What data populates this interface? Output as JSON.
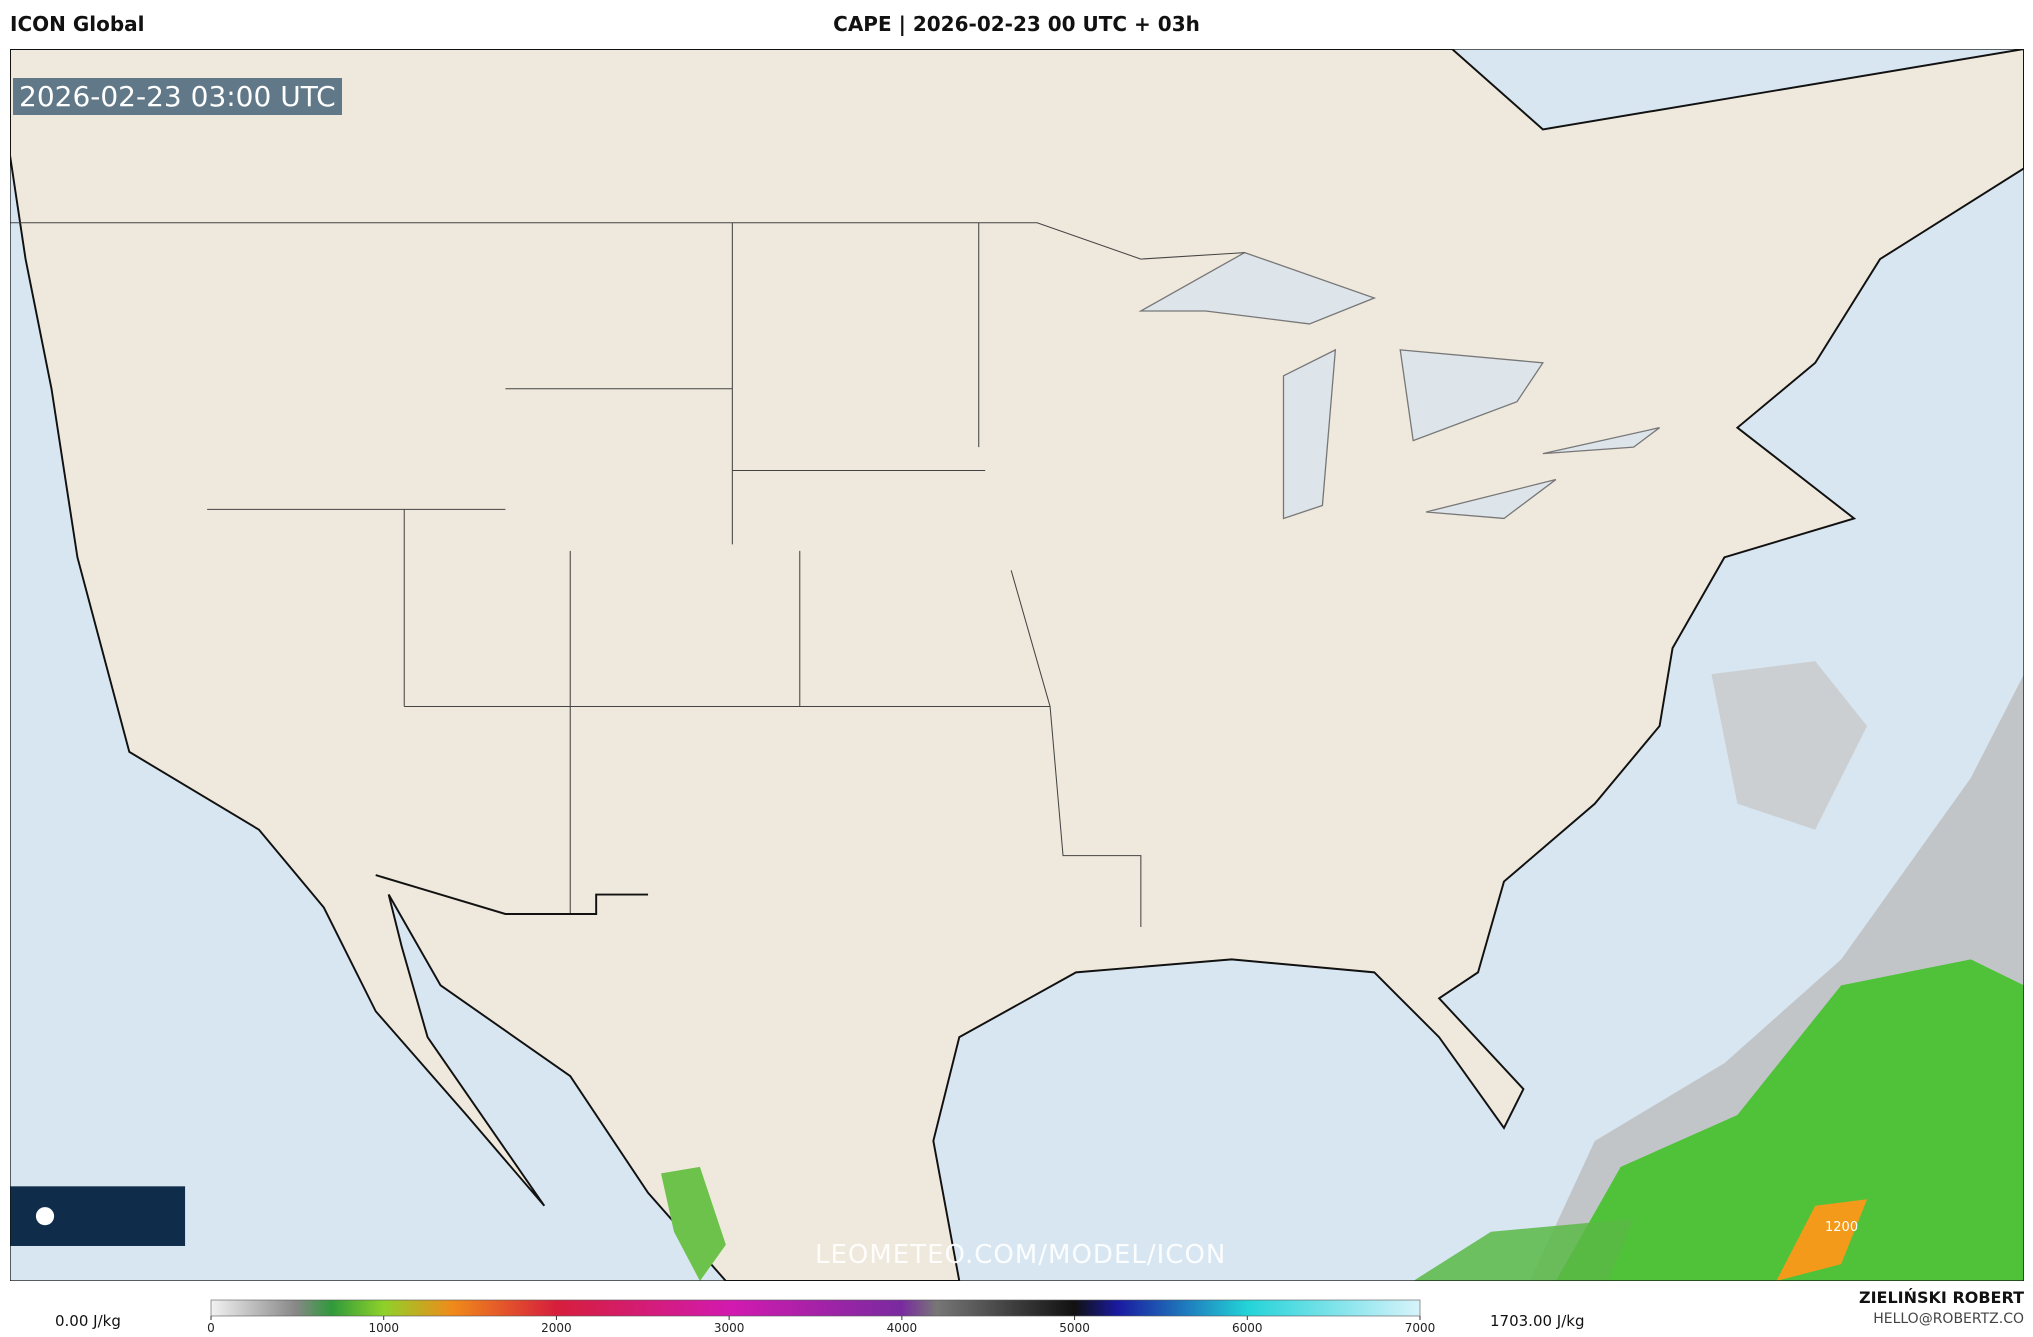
{
  "header": {
    "model": "ICON Global",
    "title": "CAPE | 2026-02-23 00 UTC + 03h"
  },
  "map": {
    "timestamp": "2026-02-23 03:00 UTC",
    "watermark": "LEOMETEO.COM/MODEL/ICON",
    "label": "1200"
  },
  "colorbar": {
    "min_label": "0.00 J/kg",
    "max_label": "1703.00 J/kg",
    "range": [
      0,
      7000
    ],
    "ticks": [
      0,
      1000,
      2000,
      3000,
      4000,
      5000,
      6000,
      7000
    ]
  },
  "footer": {
    "author": "ZIELIŃSKI ROBERT",
    "email": "HELLO@ROBERTZ.CO"
  }
}
